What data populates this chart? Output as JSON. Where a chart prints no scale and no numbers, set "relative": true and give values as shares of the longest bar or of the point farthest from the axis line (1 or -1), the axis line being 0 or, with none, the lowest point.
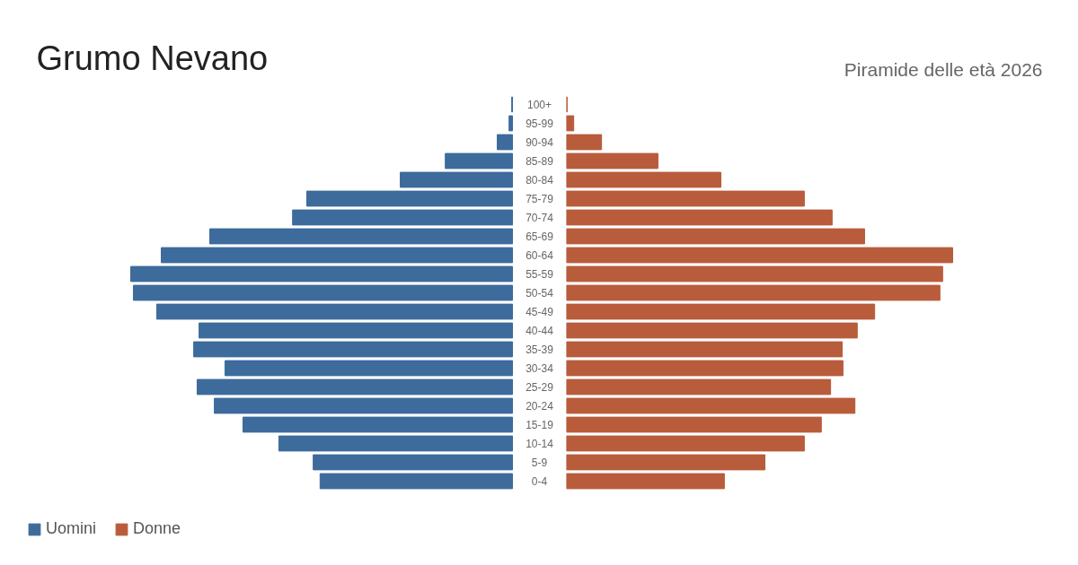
{
  "chart_data": [
    {
      "type": "bar",
      "orientation": "horizontal",
      "relative": true,
      "title": "Grumo Nevano",
      "legend": "bottom left",
      "grid": false,
      "categories": [
        "100+",
        "95-99",
        "90-94",
        "85-89",
        "80-84",
        "75-79",
        "70-74",
        "65-69",
        "60-64",
        "55-59",
        "50-54",
        "45-49",
        "40-44",
        "35-39",
        "30-34",
        "25-29",
        "20-24",
        "15-19",
        "10-14",
        "5-9",
        "0-4"
      ],
      "series": [
        {
          "name": "Uomini",
          "color": "#3d6b9c",
          "values": [
            -0.002,
            -0.009,
            -0.04,
            -0.176,
            -0.294,
            -0.539,
            -0.576,
            -0.793,
            -0.92,
            -1,
            -0.993,
            -0.932,
            -0.821,
            -0.835,
            -0.753,
            -0.826,
            -0.781,
            -0.706,
            -0.612,
            -0.522,
            -0.504
          ]
        }
      ]
    },
    {
      "type": "bar",
      "orientation": "horizontal",
      "relative": true,
      "subtitle": "Piramide delle età 2026",
      "legend": "bottom left",
      "grid": false,
      "categories": [
        null,
        null,
        null,
        null,
        null,
        null,
        null,
        null,
        null,
        null,
        null,
        null,
        null,
        null,
        null,
        null,
        null,
        null,
        null,
        null,
        null
      ],
      "series": [
        {
          "name": "Donne",
          "color": "#b95c3c",
          "values": [
            0.002,
            0.019,
            0.091,
            0.237,
            0.4,
            0.616,
            0.688,
            0.772,
            1,
            0.974,
            0.967,
            0.798,
            0.753,
            0.714,
            0.716,
            0.684,
            0.747,
            0.66,
            0.616,
            0.514,
            0.409
          ]
        }
      ]
    }
  ]
}
